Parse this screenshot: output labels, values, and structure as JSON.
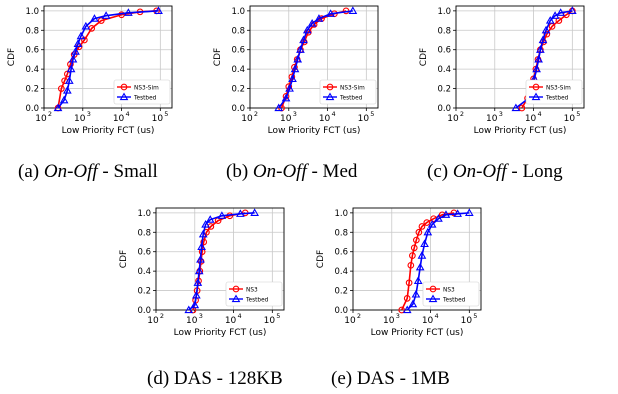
{
  "figure": {
    "captions": [
      {
        "pre": "(a) ",
        "em": "On-Off",
        "post": " - Small"
      },
      {
        "pre": "(b) ",
        "em": "On-Off",
        "post": " - Med"
      },
      {
        "pre": "(c) ",
        "em": "On-Off",
        "post": " - Long"
      },
      {
        "pre": "(d) DAS - 128KB",
        "em": "",
        "post": ""
      },
      {
        "pre": "(e) DAS - 1MB",
        "em": "",
        "post": ""
      }
    ]
  },
  "colors": {
    "sim": "#ff0000",
    "testbed": "#0000ff",
    "grid": "#c8c8c8"
  },
  "chart_data": [
    {
      "type": "line",
      "xlabel": "Low Priority FCT (us)",
      "ylabel": "CDF",
      "xscale": "log",
      "xlim": [
        100,
        200000
      ],
      "ylim": [
        0,
        1.05
      ],
      "xticks": [
        {
          "v": 100,
          "e": "2"
        },
        {
          "v": 1000,
          "e": "3"
        },
        {
          "v": 10000,
          "e": "4"
        },
        {
          "v": 100000,
          "e": "5"
        }
      ],
      "yticks": [
        "0.0",
        "0.2",
        "0.4",
        "0.6",
        "0.8",
        "1.0"
      ],
      "grid": true,
      "legend_position": "lower-right",
      "series": [
        {
          "name": "NS3-Sim",
          "marker": "circle",
          "x": [
            230,
            280,
            340,
            400,
            480,
            600,
            800,
            1100,
            1700,
            3000,
            10000,
            30000,
            80000
          ],
          "y": [
            0.0,
            0.2,
            0.28,
            0.35,
            0.45,
            0.55,
            0.63,
            0.7,
            0.82,
            0.9,
            0.96,
            0.99,
            1.0
          ]
        },
        {
          "name": "Testbed",
          "marker": "triangle",
          "x": [
            230,
            330,
            400,
            450,
            500,
            560,
            650,
            750,
            900,
            1200,
            2000,
            4000,
            15000,
            90000
          ],
          "y": [
            0.0,
            0.08,
            0.18,
            0.28,
            0.4,
            0.5,
            0.58,
            0.66,
            0.74,
            0.84,
            0.92,
            0.95,
            0.98,
            1.0
          ]
        }
      ]
    },
    {
      "type": "line",
      "xlabel": "Low Priority FCT (us)",
      "ylabel": "CDF",
      "xscale": "log",
      "xlim": [
        100,
        200000
      ],
      "ylim": [
        0,
        1.05
      ],
      "xticks": [
        {
          "v": 100,
          "e": "2"
        },
        {
          "v": 1000,
          "e": "3"
        },
        {
          "v": 10000,
          "e": "4"
        },
        {
          "v": 100000,
          "e": "5"
        }
      ],
      "yticks": [
        "0.0",
        "0.2",
        "0.4",
        "0.6",
        "0.8",
        "1.0"
      ],
      "grid": true,
      "legend_position": "lower-right",
      "series": [
        {
          "name": "NS3-Sim",
          "marker": "circle",
          "x": [
            650,
            850,
            1000,
            1200,
            1400,
            1650,
            2000,
            2500,
            3200,
            4500,
            7000,
            15000,
            30000
          ],
          "y": [
            0.0,
            0.12,
            0.22,
            0.32,
            0.42,
            0.5,
            0.6,
            0.68,
            0.78,
            0.86,
            0.92,
            0.97,
            1.0
          ]
        },
        {
          "name": "Testbed",
          "marker": "triangle",
          "x": [
            550,
            850,
            1050,
            1250,
            1450,
            1700,
            2000,
            2400,
            3000,
            4000,
            6000,
            12000,
            45000
          ],
          "y": [
            0.0,
            0.1,
            0.2,
            0.3,
            0.4,
            0.5,
            0.6,
            0.7,
            0.8,
            0.87,
            0.92,
            0.97,
            1.0
          ]
        }
      ]
    },
    {
      "type": "line",
      "xlabel": "Low Priority FCT (us)",
      "ylabel": "CDF",
      "xscale": "log",
      "xlim": [
        100,
        200000
      ],
      "ylim": [
        0,
        1.05
      ],
      "xticks": [
        {
          "v": 100,
          "e": "2"
        },
        {
          "v": 1000,
          "e": "3"
        },
        {
          "v": 10000,
          "e": "4"
        },
        {
          "v": 100000,
          "e": "5"
        }
      ],
      "yticks": [
        "0.0",
        "0.2",
        "0.4",
        "0.6",
        "0.8",
        "1.0"
      ],
      "grid": true,
      "legend_position": "lower-right",
      "series": [
        {
          "name": "NS3-Sim",
          "marker": "circle",
          "x": [
            5000,
            7000,
            8500,
            10000,
            11500,
            13000,
            15000,
            18000,
            22000,
            30000,
            45000,
            70000,
            100000
          ],
          "y": [
            0.0,
            0.1,
            0.2,
            0.3,
            0.4,
            0.5,
            0.6,
            0.68,
            0.76,
            0.84,
            0.9,
            0.96,
            1.0
          ]
        },
        {
          "name": "Testbed",
          "marker": "triangle",
          "x": [
            3500,
            7500,
            9000,
            10500,
            12000,
            13500,
            15000,
            17500,
            21000,
            27000,
            36000,
            50000,
            100000
          ],
          "y": [
            0.0,
            0.1,
            0.2,
            0.3,
            0.4,
            0.5,
            0.6,
            0.7,
            0.8,
            0.9,
            0.95,
            0.98,
            1.0
          ]
        }
      ]
    },
    {
      "type": "line",
      "xlabel": "Low Priority FCT (us)",
      "ylabel": "CDF",
      "xscale": "log",
      "xlim": [
        100,
        200000
      ],
      "ylim": [
        0,
        1.05
      ],
      "xticks": [
        {
          "v": 100,
          "e": "2"
        },
        {
          "v": 1000,
          "e": "3"
        },
        {
          "v": 10000,
          "e": "4"
        },
        {
          "v": 100000,
          "e": "5"
        }
      ],
      "yticks": [
        "0.0",
        "0.2",
        "0.4",
        "0.6",
        "0.8",
        "1.0"
      ],
      "grid": true,
      "legend_position": "lower-right",
      "series": [
        {
          "name": "NS3",
          "marker": "circle",
          "x": [
            900,
            1050,
            1150,
            1250,
            1350,
            1450,
            1550,
            1700,
            2000,
            2600,
            4000,
            8000,
            20000
          ],
          "y": [
            0.0,
            0.1,
            0.2,
            0.3,
            0.4,
            0.5,
            0.6,
            0.7,
            0.8,
            0.86,
            0.92,
            0.97,
            1.0
          ]
        },
        {
          "name": "Testbed",
          "marker": "triangle",
          "x": [
            700,
            1000,
            1100,
            1200,
            1300,
            1400,
            1500,
            1650,
            1900,
            2500,
            5000,
            15000,
            35000
          ],
          "y": [
            0.0,
            0.05,
            0.15,
            0.28,
            0.4,
            0.52,
            0.65,
            0.78,
            0.88,
            0.93,
            0.97,
            0.99,
            1.0
          ]
        }
      ]
    },
    {
      "type": "line",
      "xlabel": "Low Priority FCT (us)",
      "ylabel": "CDF",
      "xscale": "log",
      "xlim": [
        100,
        200000
      ],
      "ylim": [
        0,
        1.05
      ],
      "xticks": [
        {
          "v": 100,
          "e": "2"
        },
        {
          "v": 1000,
          "e": "3"
        },
        {
          "v": 10000,
          "e": "4"
        },
        {
          "v": 100000,
          "e": "5"
        }
      ],
      "yticks": [
        "0.0",
        "0.2",
        "0.4",
        "0.6",
        "0.8",
        "1.0"
      ],
      "grid": true,
      "legend_position": "lower-right",
      "series": [
        {
          "name": "NS3",
          "marker": "circle",
          "x": [
            1800,
            2500,
            2800,
            3100,
            3400,
            3800,
            4300,
            5000,
            6000,
            8000,
            12000,
            20000,
            40000
          ],
          "y": [
            0.0,
            0.12,
            0.28,
            0.46,
            0.56,
            0.64,
            0.72,
            0.8,
            0.86,
            0.9,
            0.94,
            0.98,
            1.0
          ]
        },
        {
          "name": "Testbed",
          "marker": "triangle",
          "x": [
            2500,
            3500,
            4200,
            4800,
            5400,
            6000,
            7000,
            8500,
            11000,
            16000,
            25000,
            50000,
            100000
          ],
          "y": [
            0.0,
            0.06,
            0.16,
            0.3,
            0.44,
            0.56,
            0.68,
            0.8,
            0.88,
            0.94,
            0.98,
            0.99,
            1.0
          ]
        }
      ]
    }
  ]
}
